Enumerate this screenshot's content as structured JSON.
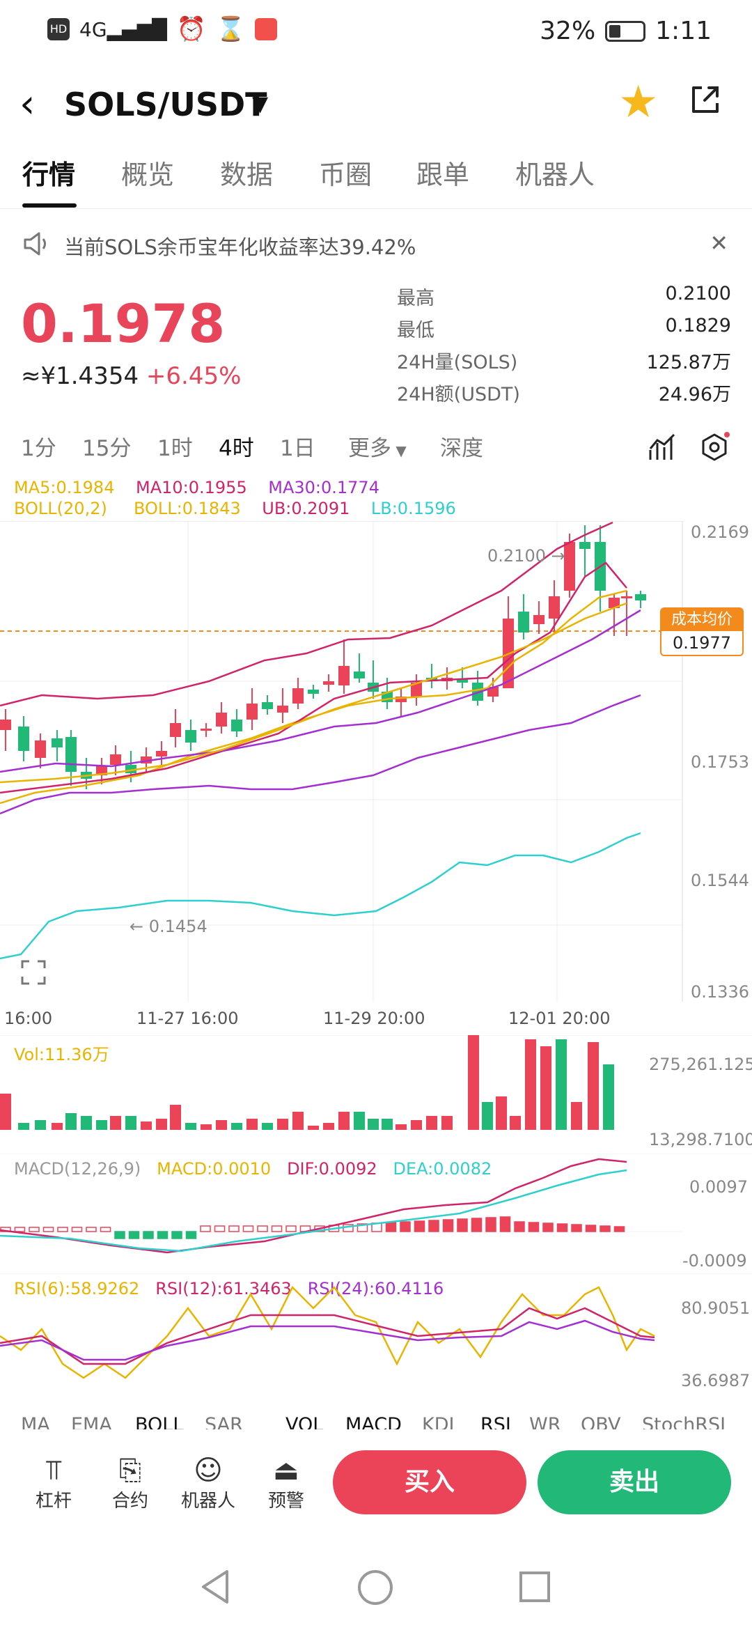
{
  "status": {
    "left_icons": [
      "HD",
      "4G",
      "signal",
      "alarm",
      "hourglass",
      "app"
    ],
    "battery": "32%",
    "time": "1:11"
  },
  "header": {
    "pair": "SOLS/USDT"
  },
  "tabs": [
    "行情",
    "概览",
    "数据",
    "币圈",
    "跟单",
    "机器人"
  ],
  "notice": {
    "text": "当前SOLS余币宝年化收益率达39.42%"
  },
  "ticker": {
    "price": "0.1978",
    "cny": "≈¥1.4354",
    "change": "+6.45%",
    "stats": [
      {
        "label": "最高",
        "value": "0.2100"
      },
      {
        "label": "最低",
        "value": "0.1829"
      },
      {
        "label": "24H量(SOLS)",
        "value": "125.87万"
      },
      {
        "label": "24H额(USDT)",
        "value": "24.96万"
      }
    ]
  },
  "timeframes": [
    "1分",
    "15分",
    "1时",
    "4时",
    "1日",
    "更多",
    "深度"
  ],
  "legends": {
    "ma5": "MA5:0.1984",
    "ma10": "MA10:0.1955",
    "ma30": "MA30:0.1774",
    "boll": "BOLL(20,2)",
    "boll_mid": "BOLL:0.1843",
    "ub": "UB:0.2091",
    "lb": "LB:0.1596",
    "vol": "Vol:11.36万",
    "macd_title": "MACD(12,26,9)",
    "macd": "MACD:0.0010",
    "dif": "DIF:0.0092",
    "dea": "DEA:0.0082",
    "rsi6": "RSI(6):58.9262",
    "rsi12": "RSI(12):61.3463",
    "rsi24": "RSI(24):60.4116"
  },
  "chart_data": {
    "type": "candlestick",
    "y_ticks": [
      "0.2169",
      "0.1753",
      "0.1544",
      "0.1336"
    ],
    "x_ticks": [
      "16:00",
      "11-27 16:00",
      "11-29 20:00",
      "12-01 20:00"
    ],
    "high_marker": "0.2100 →",
    "low_marker": "← 0.1454",
    "cost_label": "成本均价",
    "cost_value": "0.1977",
    "vol_ticks": [
      "275,261.1250",
      "13,298.7100"
    ],
    "macd_ticks": [
      "0.0097",
      "-0.0009"
    ],
    "rsi_ticks": [
      "80.9051",
      "36.6987"
    ],
    "colors": {
      "up": "#eb4358",
      "down": "#22b877",
      "ma5": "#e8b400",
      "ma10": "#d0246a",
      "ma30": "#a42fd0",
      "lb": "#2ecfcf"
    }
  },
  "indicator_tabs": [
    "MA",
    "EMA",
    "BOLL",
    "SAR",
    "VOL",
    "MACD",
    "KDJ",
    "RSI",
    "WR",
    "OBV",
    "StochRSI"
  ],
  "bottom": {
    "tools": [
      {
        "label": "杠杆",
        "icon": "leverage-icon"
      },
      {
        "label": "合约",
        "icon": "contract-icon"
      },
      {
        "label": "机器人",
        "icon": "robot-icon"
      },
      {
        "label": "预警",
        "icon": "alert-icon"
      }
    ],
    "buy": "买入",
    "sell": "卖出"
  }
}
